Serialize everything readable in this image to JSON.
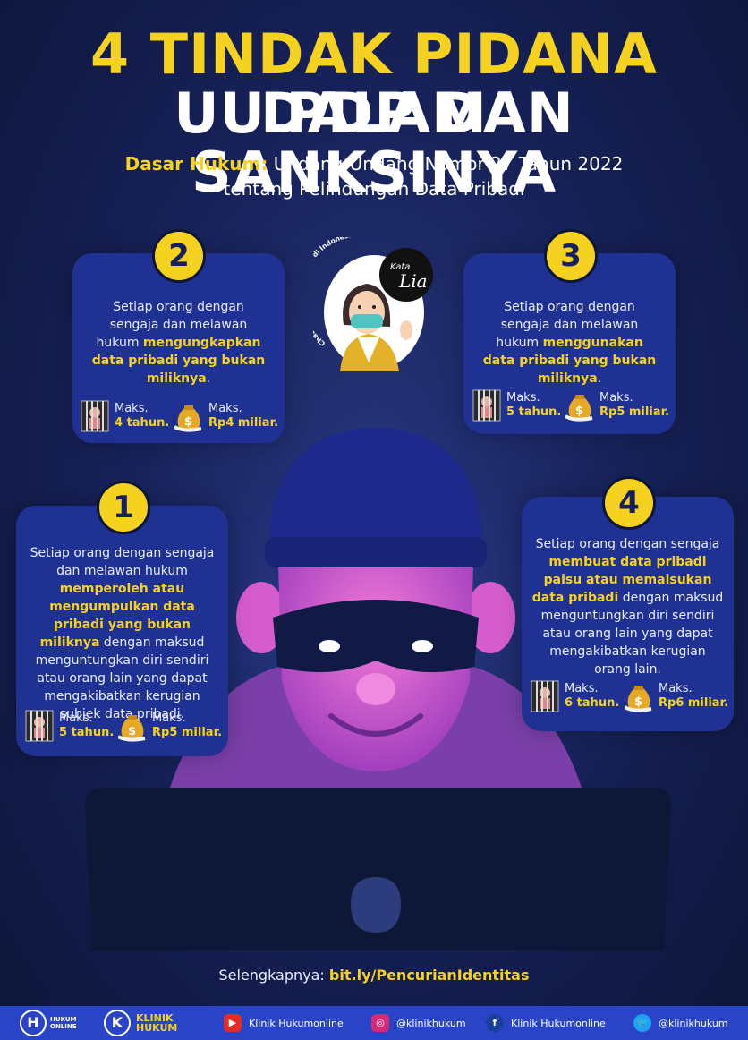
{
  "title": {
    "line1_yellow": "4 TINDAK PIDANA",
    "line1_white": "DALAM",
    "line2": "UU PDP DAN SANKSINYA"
  },
  "subtitle": {
    "label": "Dasar Hukum:",
    "line1": "Undang-Undang Nomor 27 Tahun 2022",
    "line2": "tentang Pelindungan Data Pribadi"
  },
  "avatar": {
    "arc_text": "Chatbot Hukum Pertama di Indonesia",
    "brand_top": "Kata",
    "brand_script": "Lia"
  },
  "cards": [
    {
      "number": "1",
      "text_before": "Setiap orang dengan sengaja dan melawan hukum ",
      "highlight": "memperoleh atau mengumpulkan data pribadi yang bukan miliknya",
      "text_after": " dengan maksud menguntungkan diri sendiri atau orang lain yang dapat mengakibatkan kerugian subjek data pribadi.",
      "prison_label": "Maks.",
      "prison_value": "5 tahun.",
      "fine_label": "Maks.",
      "fine_value": "Rp5 miliar."
    },
    {
      "number": "2",
      "text_before": "Setiap orang dengan sengaja dan melawan hukum ",
      "highlight": "mengungkapkan data pribadi yang bukan miliknya",
      "text_after": ".",
      "prison_label": "Maks.",
      "prison_value": "4 tahun.",
      "fine_label": "Maks.",
      "fine_value": "Rp4 miliar."
    },
    {
      "number": "3",
      "text_before": "Setiap orang dengan sengaja dan melawan hukum ",
      "highlight": "menggunakan data pribadi yang bukan miliknya",
      "text_after": ".",
      "prison_label": "Maks.",
      "prison_value": "5 tahun.",
      "fine_label": "Maks.",
      "fine_value": "Rp5 miliar."
    },
    {
      "number": "4",
      "text_before": "Setiap orang dengan sengaja ",
      "highlight": "membuat data pribadi palsu atau memalsukan data pribadi",
      "text_after": " dengan maksud menguntungkan diri sendiri atau orang lain yang dapat mengakibatkan kerugian orang lain.",
      "prison_label": "Maks.",
      "prison_value": "6 tahun.",
      "fine_label": "Maks.",
      "fine_value": "Rp6 miliar."
    }
  ],
  "more": {
    "label": "Selengkapnya:",
    "link": "bit.ly/PencurianIdentitas"
  },
  "footer": {
    "logo1_mark": "H",
    "logo1_text": "HUKUM ONLINE",
    "logo2_mark": "K",
    "logo2_text": "KLINIK HUKUM",
    "youtube": "Klinik Hukumonline",
    "instagram": "@klinikhukum",
    "facebook": "Klinik Hukumonline",
    "twitter": "@klinikhukum"
  },
  "colors": {
    "accent": "#f5d21f",
    "card": "#1f3193",
    "background": "#17225a",
    "footer": "#2a44c8"
  },
  "icons": {
    "prison": "prison-bars-icon",
    "fine": "money-bag-icon",
    "youtube": "youtube-icon",
    "instagram": "instagram-icon",
    "facebook": "facebook-icon",
    "twitter": "twitter-icon"
  }
}
